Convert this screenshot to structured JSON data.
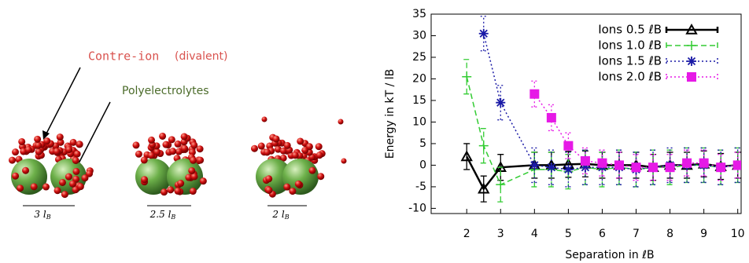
{
  "illustration": {
    "counterion": "Contre-ion",
    "counterion_note": "(divalent)",
    "polymer": "Polyelectrolytes",
    "scales": [
      {
        "text": "3 l",
        "sub": "B"
      },
      {
        "text": "2.5 l",
        "sub": "B"
      },
      {
        "text": "2 l",
        "sub": "B"
      }
    ]
  },
  "chart_data": {
    "type": "line",
    "y_label": "Energy in kT / lB",
    "x_label": "Separation in ℓB",
    "x": [
      2,
      2.5,
      3,
      4,
      4.5,
      5,
      5.5,
      6,
      6.5,
      7,
      7.5,
      8,
      8.5,
      9,
      9.5,
      10
    ],
    "xlim": [
      0.95,
      10.1
    ],
    "xticks": [
      2,
      3,
      4,
      5,
      6,
      7,
      8,
      9,
      10
    ],
    "ylim": [
      -11.2,
      35
    ],
    "yticks": [
      -10,
      -5,
      0,
      5,
      10,
      15,
      20,
      25,
      30,
      35
    ],
    "legend": "top-right",
    "series": [
      {
        "name": "Ions 0.5 ℓB",
        "color": "#000000",
        "marker": "triangle",
        "line_style": "solid",
        "error": 3,
        "values": [
          2,
          -5.5,
          -0.5,
          0,
          0,
          0.2,
          0.3,
          0,
          0,
          0,
          -0.5,
          0,
          0,
          0.3,
          -0.3,
          0
        ]
      },
      {
        "name": "Ions 1.0 ℓB",
        "color": "#33cc33",
        "marker": "plus",
        "line_style": "dashed",
        "error": 4,
        "values": [
          20.5,
          4.5,
          -4.5,
          -1,
          -1,
          -1.5,
          -0.5,
          -1,
          -0.5,
          -1,
          -0.5,
          -0.5,
          0,
          0,
          -0.5,
          0
        ]
      },
      {
        "name": "Ions 1.5 ℓB",
        "color": "#1a1aa6",
        "marker": "star",
        "line_style": "dotted",
        "error": 4,
        "values": [
          null,
          30.5,
          14.5,
          0,
          -0.5,
          -1,
          -0.5,
          -0.5,
          -0.5,
          -1,
          -0.5,
          0,
          0,
          0,
          -0.5,
          0
        ]
      },
      {
        "name": "Ions 2.0 ℓB",
        "color": "#e619e6",
        "marker": "square",
        "line_style": "dotted",
        "error": 3,
        "values": [
          null,
          null,
          null,
          16.5,
          11,
          4.5,
          1,
          0.5,
          0,
          -0.5,
          -0.5,
          -0.5,
          0.5,
          0.5,
          -0.5,
          0
        ]
      }
    ]
  }
}
